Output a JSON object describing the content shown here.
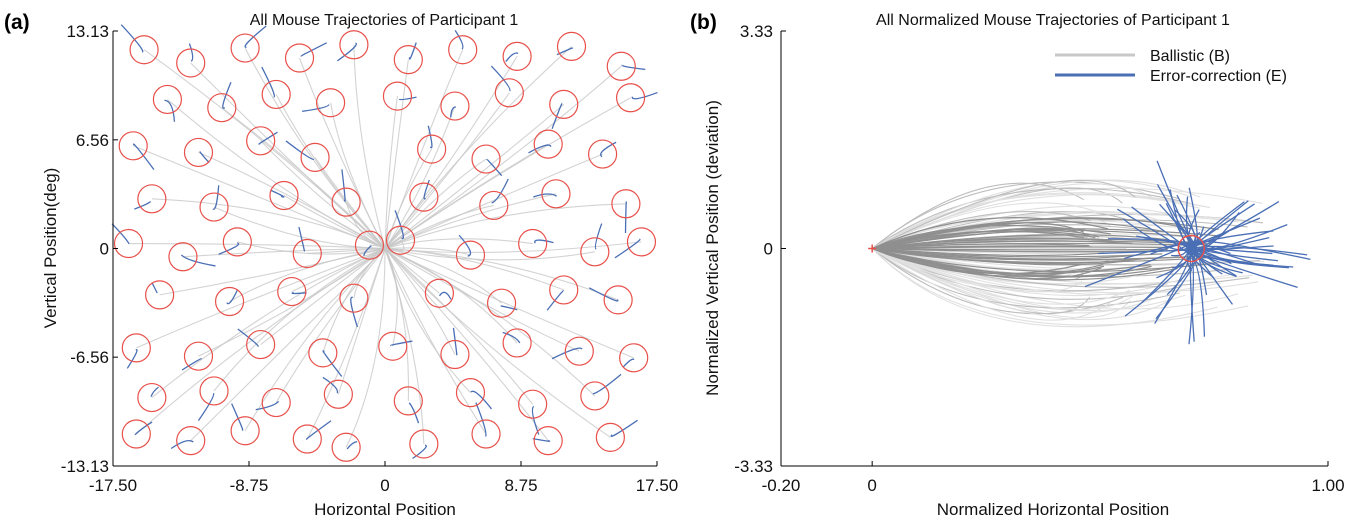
{
  "chart_data": [
    {
      "panel_label": "(a)",
      "type": "line",
      "title": "All Mouse Trajectories of Participant 1",
      "xlabel": "Horizontal Position",
      "ylabel": "Vertical Position(deg)",
      "xlim": [
        -17.5,
        17.5
      ],
      "ylim": [
        -13.13,
        13.13
      ],
      "xticks": [
        "-17.50",
        "-8.75",
        "0",
        "8.75",
        "17.50"
      ],
      "yticks": [
        "-13.13",
        "-6.56",
        "0",
        "6.56",
        "13.13"
      ],
      "grid": false,
      "series_colors": {
        "ballistic": "#c8c8c8",
        "error_correction": "#4a6fb5",
        "targets": "#e8504a"
      },
      "targets": [
        {
          "x": -15.5,
          "y": 12.0
        },
        {
          "x": -12.5,
          "y": 11.2
        },
        {
          "x": -9.0,
          "y": 12.1
        },
        {
          "x": -5.5,
          "y": 11.5
        },
        {
          "x": -2.0,
          "y": 12.3
        },
        {
          "x": 1.5,
          "y": 11.4
        },
        {
          "x": 5.0,
          "y": 12.0
        },
        {
          "x": 8.5,
          "y": 11.6
        },
        {
          "x": 12.0,
          "y": 12.2
        },
        {
          "x": 15.2,
          "y": 11.0
        },
        {
          "x": -14.0,
          "y": 9.0
        },
        {
          "x": -10.5,
          "y": 8.5
        },
        {
          "x": -7.0,
          "y": 9.3
        },
        {
          "x": -3.5,
          "y": 8.8
        },
        {
          "x": 0.8,
          "y": 9.2
        },
        {
          "x": 4.5,
          "y": 8.6
        },
        {
          "x": 8.0,
          "y": 9.4
        },
        {
          "x": 11.5,
          "y": 8.7
        },
        {
          "x": 15.8,
          "y": 9.1
        },
        {
          "x": -16.2,
          "y": 6.2
        },
        {
          "x": -12.0,
          "y": 5.8
        },
        {
          "x": -8.0,
          "y": 6.5
        },
        {
          "x": -4.5,
          "y": 5.5
        },
        {
          "x": 3.0,
          "y": 6.0
        },
        {
          "x": 6.5,
          "y": 5.4
        },
        {
          "x": 10.5,
          "y": 6.3
        },
        {
          "x": 14.0,
          "y": 5.7
        },
        {
          "x": -15.0,
          "y": 3.0
        },
        {
          "x": -11.0,
          "y": 2.5
        },
        {
          "x": -6.5,
          "y": 3.2
        },
        {
          "x": -2.5,
          "y": 2.8
        },
        {
          "x": 2.5,
          "y": 3.1
        },
        {
          "x": 7.0,
          "y": 2.6
        },
        {
          "x": 11.0,
          "y": 3.3
        },
        {
          "x": 15.5,
          "y": 2.7
        },
        {
          "x": -16.5,
          "y": 0.3
        },
        {
          "x": -13.0,
          "y": -0.5
        },
        {
          "x": -9.5,
          "y": 0.4
        },
        {
          "x": -5.0,
          "y": -0.3
        },
        {
          "x": -1.0,
          "y": 0.2
        },
        {
          "x": 1.0,
          "y": 0.5
        },
        {
          "x": 5.5,
          "y": -0.4
        },
        {
          "x": 9.5,
          "y": 0.3
        },
        {
          "x": 13.5,
          "y": -0.2
        },
        {
          "x": 16.5,
          "y": 0.4
        },
        {
          "x": -14.5,
          "y": -2.8
        },
        {
          "x": -10.0,
          "y": -3.2
        },
        {
          "x": -6.0,
          "y": -2.6
        },
        {
          "x": -2.0,
          "y": -3.0
        },
        {
          "x": 3.5,
          "y": -2.7
        },
        {
          "x": 7.5,
          "y": -3.3
        },
        {
          "x": 11.5,
          "y": -2.5
        },
        {
          "x": 15.0,
          "y": -3.1
        },
        {
          "x": -16.0,
          "y": -6.0
        },
        {
          "x": -12.0,
          "y": -6.5
        },
        {
          "x": -8.0,
          "y": -5.8
        },
        {
          "x": -4.0,
          "y": -6.3
        },
        {
          "x": 0.5,
          "y": -5.9
        },
        {
          "x": 4.5,
          "y": -6.4
        },
        {
          "x": 8.5,
          "y": -5.7
        },
        {
          "x": 12.5,
          "y": -6.2
        },
        {
          "x": 16.0,
          "y": -6.6
        },
        {
          "x": -15.0,
          "y": -9.0
        },
        {
          "x": -11.0,
          "y": -8.6
        },
        {
          "x": -7.0,
          "y": -9.3
        },
        {
          "x": -3.0,
          "y": -8.8
        },
        {
          "x": 1.5,
          "y": -9.2
        },
        {
          "x": 5.5,
          "y": -8.7
        },
        {
          "x": 9.5,
          "y": -9.4
        },
        {
          "x": 13.5,
          "y": -8.9
        },
        {
          "x": -16.0,
          "y": -11.2
        },
        {
          "x": -12.5,
          "y": -11.6
        },
        {
          "x": -9.0,
          "y": -11.0
        },
        {
          "x": -5.0,
          "y": -11.5
        },
        {
          "x": -2.5,
          "y": -12.0
        },
        {
          "x": 2.5,
          "y": -11.8
        },
        {
          "x": 6.5,
          "y": -11.2
        },
        {
          "x": 10.5,
          "y": -11.6
        },
        {
          "x": 14.5,
          "y": -11.4
        }
      ]
    },
    {
      "panel_label": "(b)",
      "type": "line",
      "title": "All Normalized Mouse Trajectories of Participant 1",
      "xlabel": "Normalized Horizontal Position",
      "ylabel": "Normalized Vertical Position (deviation)",
      "xlim": [
        -0.2,
        1.0
      ],
      "ylim": [
        -3.33,
        3.33
      ],
      "xticks": [
        "-0.20",
        "0",
        "1.00"
      ],
      "yticks": [
        "-3.33",
        "0",
        "3.33"
      ],
      "grid": false,
      "legend_position": "top-right",
      "series": [
        {
          "name": "Ballistic (B)",
          "color": "#c8c8c8"
        },
        {
          "name": "Error-correction (E)",
          "color": "#4a6fb5"
        }
      ],
      "target": {
        "x": 0.7,
        "y": 0.0
      },
      "origin": {
        "x": 0.0,
        "y": 0.0
      }
    }
  ]
}
